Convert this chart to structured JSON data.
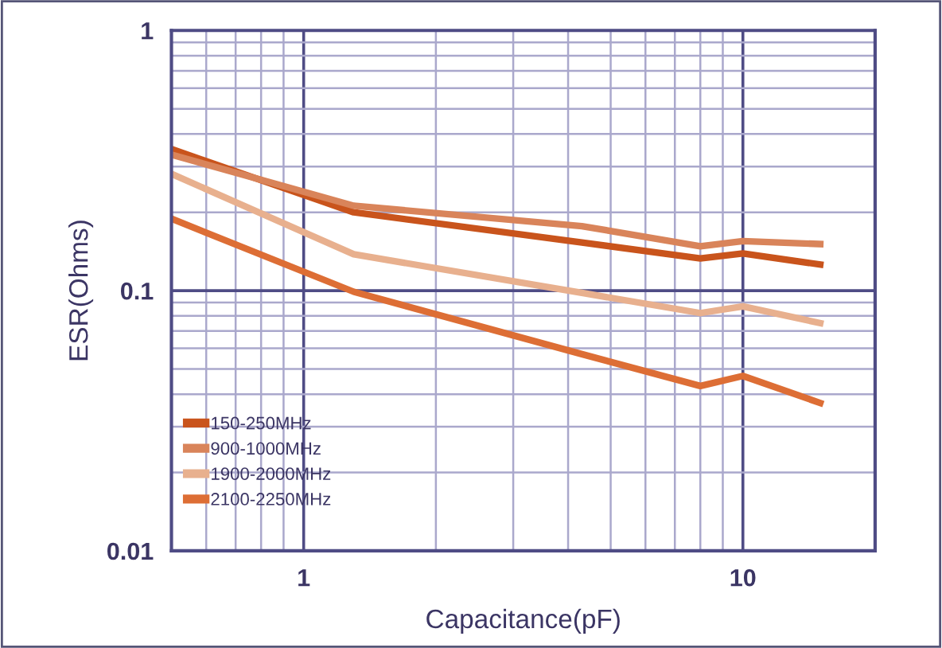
{
  "chart_data": {
    "type": "line",
    "xlabel": "Capacitance(pF)",
    "ylabel": "ESR(Ohms)",
    "log": "xy",
    "x": [
      0.5,
      1.3,
      4.3,
      8,
      10,
      15
    ],
    "series": [
      {
        "name": "150-250MHz",
        "color": "#c9541c",
        "values": [
          0.35,
          0.2,
          0.153,
          0.133,
          0.139,
          0.126
        ]
      },
      {
        "name": "900-1000MHz",
        "color": "#d9845a",
        "values": [
          0.333,
          0.212,
          0.177,
          0.148,
          0.155,
          0.151
        ]
      },
      {
        "name": "1900-2000MHz",
        "color": "#e8b08e",
        "values": [
          0.281,
          0.138,
          0.098,
          0.082,
          0.087,
          0.075
        ]
      },
      {
        "name": "2100-2250MHz",
        "color": "#dd6e35",
        "values": [
          0.189,
          0.099,
          0.057,
          0.043,
          0.047,
          0.037
        ]
      }
    ],
    "xlim": [
      0.5,
      20
    ],
    "ylim": [
      0.01,
      1
    ],
    "xticks": [
      1,
      10
    ],
    "yticks": [
      0.01,
      0.1,
      1
    ],
    "grid": true,
    "legend": "bottom left",
    "marker": "none",
    "line_style": "solid"
  }
}
